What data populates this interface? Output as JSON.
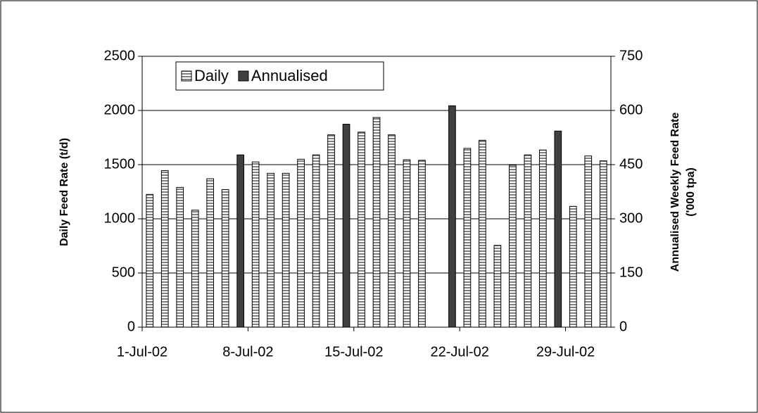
{
  "chart_data": {
    "type": "bar",
    "categories": [
      "1-Jul-02",
      null,
      null,
      null,
      null,
      null,
      null,
      "8-Jul-02",
      null,
      null,
      null,
      null,
      null,
      null,
      "15-Jul-02",
      null,
      null,
      null,
      null,
      null,
      null,
      "22-Jul-02",
      null,
      null,
      null,
      null,
      null,
      null,
      "29-Jul-02",
      null,
      null
    ],
    "series": [
      {
        "name": "Daily",
        "color": "#808080",
        "values": [
          1225,
          1445,
          1290,
          1080,
          1370,
          1270,
          null,
          1525,
          1420,
          1420,
          1550,
          1590,
          1775,
          null,
          1800,
          1935,
          1775,
          1545,
          1540,
          null,
          null,
          1650,
          1725,
          755,
          1495,
          1590,
          1635,
          null,
          1115,
          1580,
          1535
        ]
      },
      {
        "name": "Annualised",
        "color": "#404040",
        "axis": "y2",
        "values": [
          null,
          null,
          null,
          null,
          null,
          null,
          477,
          null,
          null,
          null,
          null,
          null,
          null,
          562,
          null,
          null,
          null,
          null,
          null,
          null,
          613,
          null,
          null,
          null,
          null,
          null,
          null,
          543,
          null,
          null,
          null
        ]
      }
    ],
    "y_label": "Daily Feed Rate (t/d)",
    "y2_label": [
      "Annualised Weekly Feed Rate",
      "('000 tpa)"
    ],
    "ylim": [
      0,
      2500
    ],
    "yticks": [
      0,
      500,
      1000,
      1500,
      2000,
      2500
    ],
    "y2lim": [
      0,
      750
    ],
    "y2ticks": [
      0,
      150,
      300,
      450,
      600,
      750
    ],
    "grid": true,
    "legend": "top-left"
  }
}
